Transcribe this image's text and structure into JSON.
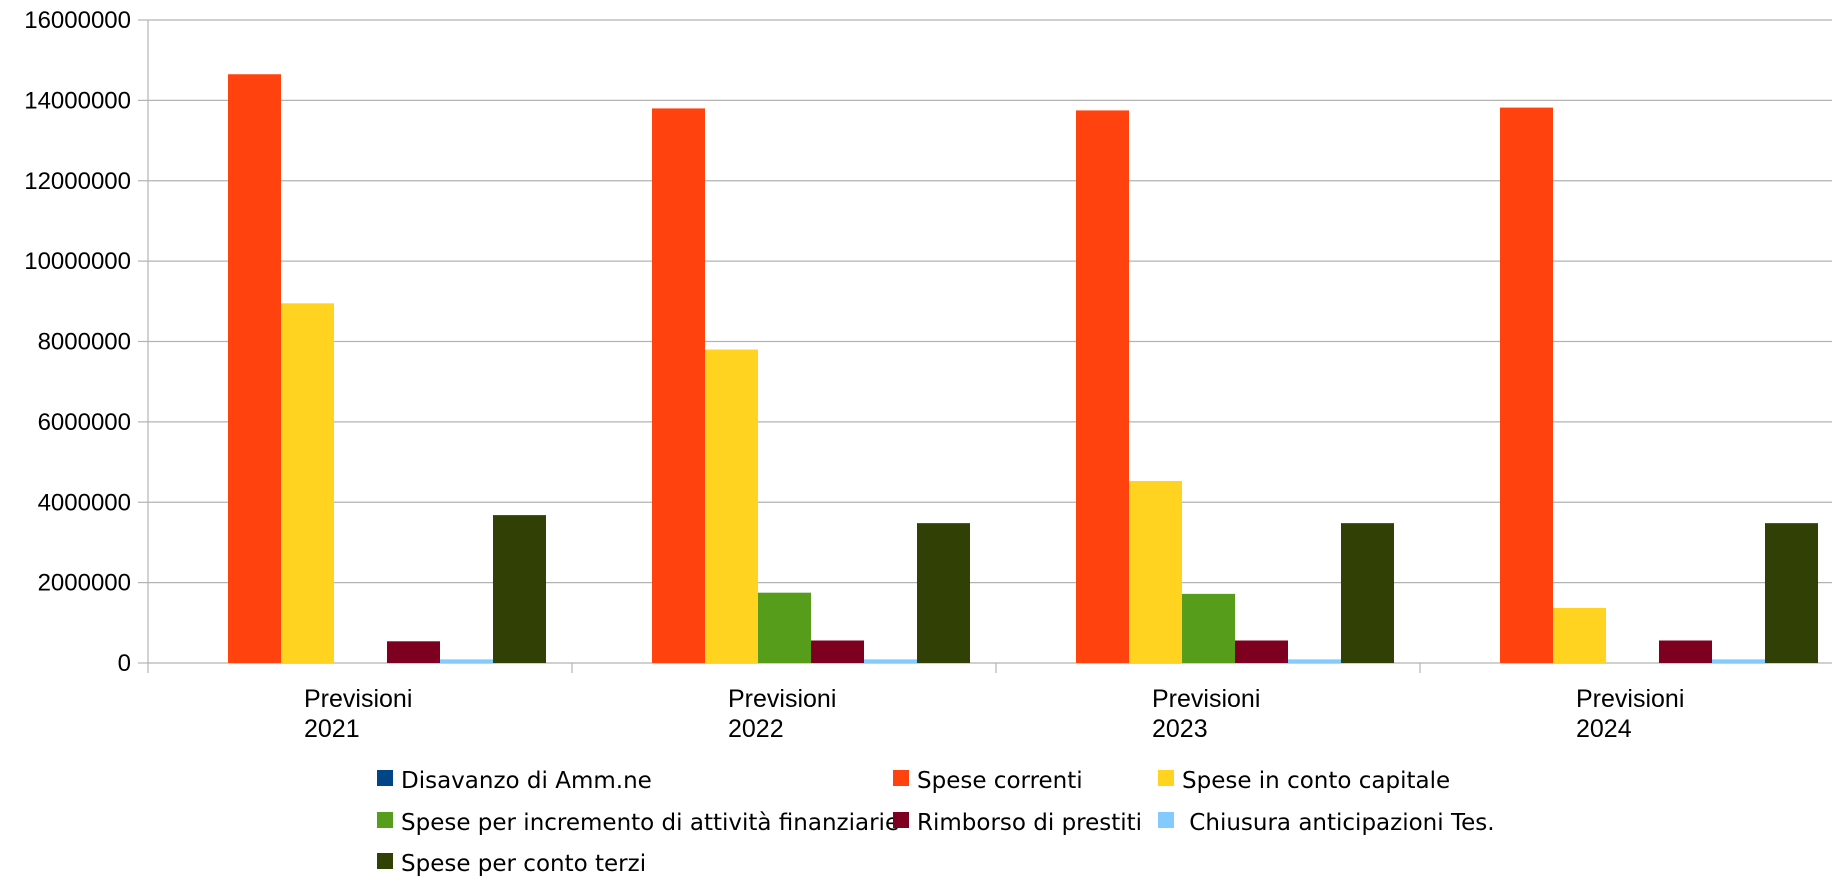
{
  "chart_data": {
    "type": "bar",
    "title": "",
    "xlabel": "",
    "ylabel": "",
    "ylim": [
      0,
      16000000
    ],
    "yticks": [
      0,
      2000000,
      4000000,
      6000000,
      8000000,
      10000000,
      12000000,
      14000000,
      16000000
    ],
    "grid": true,
    "legend_position": "bottom",
    "categories": [
      [
        "Previsioni",
        "2021"
      ],
      [
        "Previsioni",
        "2022"
      ],
      [
        "Previsioni",
        "2023"
      ],
      [
        "Previsioni",
        "2024"
      ]
    ],
    "series": [
      {
        "name": "Disavanzo di Amm.ne",
        "color": "#004586",
        "values": [
          0,
          0,
          0,
          0
        ]
      },
      {
        "name": "Spese correnti",
        "color": "#ff420e",
        "values": [
          14650000,
          13800000,
          13750000,
          13820000
        ]
      },
      {
        "name": "Spese in conto capitale",
        "color": "#ffd320",
        "values": [
          8950000,
          7800000,
          4530000,
          1370000
        ]
      },
      {
        "name": "Spese per incremento di attività finanziarie",
        "color": "#579d1c",
        "values": [
          0,
          1750000,
          1720000,
          0
        ]
      },
      {
        "name": "Rimborso di prestiti",
        "color": "#7e0021",
        "values": [
          540000,
          560000,
          560000,
          560000
        ]
      },
      {
        "name": " Chiusura anticipazioni Tes.",
        "color": "#83caff",
        "values": [
          90000,
          90000,
          90000,
          90000
        ]
      },
      {
        "name": "Spese per conto terzi",
        "color": "#314004",
        "values": [
          3680000,
          3480000,
          3480000,
          3480000
        ]
      }
    ]
  }
}
